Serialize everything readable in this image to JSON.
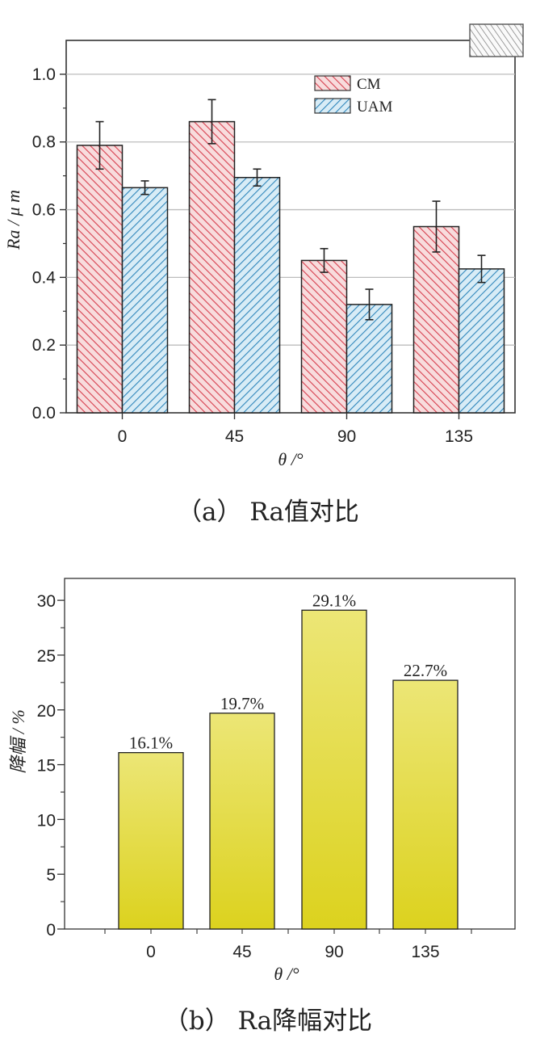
{
  "chart_data": [
    {
      "type": "bar",
      "panel": "a",
      "caption": "（a） Ra值对比",
      "categories": [
        "0",
        "45",
        "90",
        "135"
      ],
      "series": [
        {
          "name": "CM",
          "values": [
            0.79,
            0.86,
            0.45,
            0.55
          ],
          "errors": [
            0.07,
            0.065,
            0.035,
            0.075
          ],
          "color": "#d94f5c",
          "fill": "#f6d2d4"
        },
        {
          "name": "UAM",
          "values": [
            0.665,
            0.695,
            0.32,
            0.425
          ],
          "errors": [
            0.02,
            0.025,
            0.045,
            0.04
          ],
          "color": "#3a8fc0",
          "fill": "#cfe6f3"
        }
      ],
      "xlabel": "θ /°",
      "ylabel": "Ra / μ m",
      "ylim": [
        0,
        1.1
      ],
      "yticks": [
        "0.0",
        "0.2",
        "0.4",
        "0.6",
        "0.8",
        "1.0"
      ],
      "grid": true,
      "legend_position": "top-right"
    },
    {
      "type": "bar",
      "panel": "b",
      "caption": "（b） Ra降幅对比",
      "categories": [
        "0",
        "45",
        "90",
        "135"
      ],
      "values": [
        16.1,
        19.7,
        29.1,
        22.7
      ],
      "data_labels": [
        "16.1%",
        "19.7%",
        "29.1%",
        "22.7%"
      ],
      "xlabel": "θ /°",
      "ylabel": "降幅 / %",
      "ylim": [
        0,
        32
      ],
      "yticks": [
        "0",
        "5",
        "10",
        "15",
        "20",
        "25",
        "30"
      ],
      "grid": false,
      "bar_color_top": "#ece676",
      "bar_color_bottom": "#dcd21e"
    }
  ]
}
